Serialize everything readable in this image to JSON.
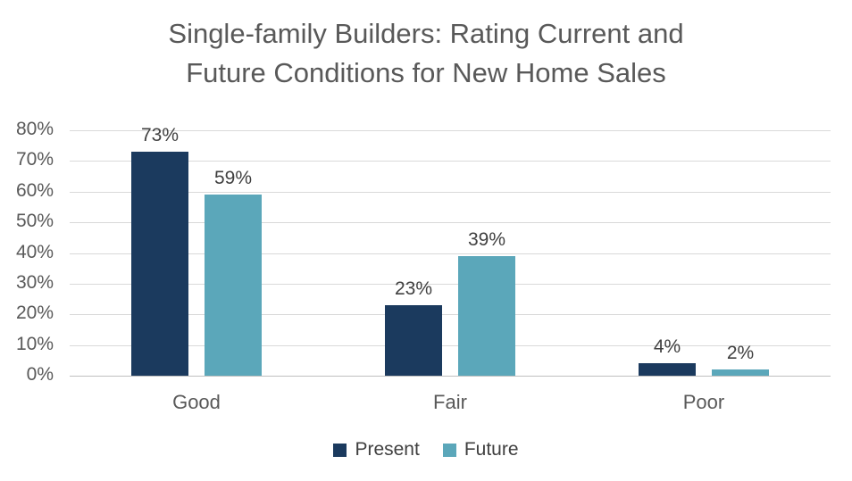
{
  "title": "Single-family Builders: Rating Current and\nFuture Conditions for New Home Sales",
  "chart_data": {
    "type": "bar",
    "title": "Single-family Builders: Rating Current and Future Conditions for New Home Sales",
    "categories": [
      "Good",
      "Fair",
      "Poor"
    ],
    "series": [
      {
        "name": "Present",
        "color": "#1b3a5e",
        "values": [
          73,
          23,
          4
        ]
      },
      {
        "name": "Future",
        "color": "#5ba7ba",
        "values": [
          59,
          39,
          2
        ]
      }
    ],
    "value_suffix": "%",
    "data_labels": true,
    "xlabel": "",
    "ylabel": "",
    "ylim": [
      0,
      80
    ],
    "ytick_step": 10,
    "ytick_labels": [
      "0%",
      "10%",
      "20%",
      "30%",
      "40%",
      "50%",
      "60%",
      "70%",
      "80%"
    ],
    "grid": true,
    "legend_position": "bottom"
  },
  "colors": {
    "title_text": "#595959",
    "axis_text": "#595959",
    "data_label_text": "#404040",
    "gridline": "#d9d9d9",
    "baseline": "#bfbfbf",
    "background": "#ffffff"
  }
}
